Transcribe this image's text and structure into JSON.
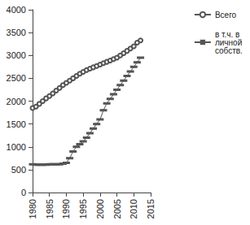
{
  "chart_data": {
    "type": "line",
    "x": [
      1980,
      1981,
      1982,
      1983,
      1984,
      1985,
      1986,
      1987,
      1988,
      1989,
      1990,
      1991,
      1992,
      1993,
      1994,
      1995,
      1996,
      1997,
      1998,
      1999,
      2000,
      2001,
      2002,
      2003,
      2004,
      2005,
      2006,
      2007,
      2008,
      2009,
      2010,
      2011,
      2012
    ],
    "series": [
      {
        "name": "Всего",
        "color": "#555555",
        "marker": "circle",
        "line_style": "solid",
        "values": [
          1850,
          1880,
          1940,
          2000,
          2060,
          2110,
          2170,
          2230,
          2290,
          2350,
          2400,
          2450,
          2500,
          2550,
          2600,
          2640,
          2680,
          2710,
          2740,
          2770,
          2800,
          2830,
          2860,
          2890,
          2920,
          2950,
          3000,
          3050,
          3100,
          3150,
          3200,
          3280,
          3330
        ]
      },
      {
        "name": "в т.ч. в личной собств.",
        "color": "#555555",
        "marker": "dash",
        "line_style": "solid",
        "values": [
          620,
          610,
          610,
          610,
          610,
          620,
          620,
          620,
          620,
          630,
          650,
          750,
          900,
          1000,
          1060,
          1120,
          1200,
          1300,
          1400,
          1500,
          1600,
          1800,
          1950,
          2050,
          2150,
          2250,
          2350,
          2450,
          2550,
          2650,
          2750,
          2850,
          2950
        ]
      }
    ],
    "xlim": [
      1980,
      2015
    ],
    "xticks": [
      1980,
      1985,
      1990,
      1995,
      2000,
      2005,
      2010,
      2015
    ],
    "ylim": [
      0,
      4000
    ],
    "yticks": [
      0,
      500,
      1000,
      1500,
      2000,
      2500,
      3000,
      3500,
      4000
    ],
    "grid": false,
    "legend": "right"
  }
}
